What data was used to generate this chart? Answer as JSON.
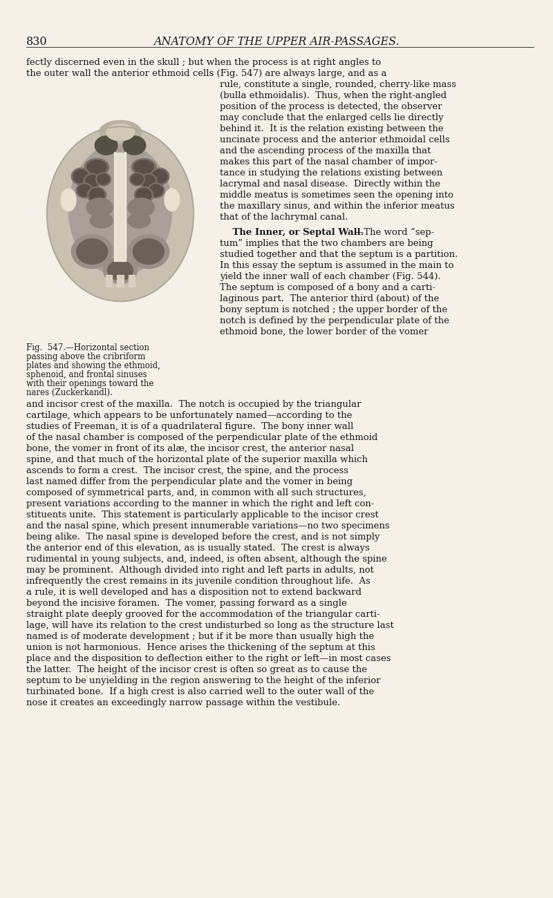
{
  "background_color": "#f5f0e8",
  "page_number": "830",
  "header": "ANATOMY OF THE UPPER AIR-PASSAGES.",
  "header_fontsize": 11.5,
  "page_number_fontsize": 11.5,
  "body_fontsize": 9.5,
  "caption_fontsize": 8.5,
  "fig_caption_line1": "Fig.  547.—Horizontal section",
  "fig_caption_line2": "passing above the cribriform",
  "fig_caption_line3": "plates and showing the ethmoid,",
  "fig_caption_line4": "sphenoid, and frontal sinuses",
  "fig_caption_line5": "with their openings toward the",
  "fig_caption_line6": "nares (Zuckerkandl).",
  "text_color": "#1a1a1a",
  "line1": "fectly discerned even in the skull ; but when the process is at right angles to",
  "line2": "the outer wall the anterior ethmoid cells (Fig. 547) are always large, and as a",
  "right_col_lines": [
    "rule, constitute a single, rounded, cherry-like mass",
    "(bulla ethmoidalis).  Thus, when the right-angled",
    "position of the process is detected, the observer",
    "may conclude that the enlarged cells lie directly",
    "behind it.  It is the relation existing between the",
    "uncinate process and the anterior ethmoidal cells",
    "and the ascending process of the maxilla that",
    "makes this part of the nasal chamber of impor-",
    "tance in studying the relations existing between",
    "lacrymal and nasal disease.  Directly within the",
    "middle meatus is sometimes seen the opening into",
    "the maxillary sinus, and within the inferior meatus",
    "that of the lachrymal canal."
  ],
  "septal_indent": "    The Inner, or Septal Wall.",
  "septal_rest_line1": "—The word “sep-",
  "septal_lines": [
    "tum” implies that the two chambers are being",
    "studied together and that the septum is a partition.",
    "In this essay the septum is assumed in the main to",
    "yield the inner wall of each chamber (Fig. 544).",
    "The septum is composed of a bony and a carti-",
    "laginous part.  The anterior third (about) of the",
    "bony septum is notched ; the upper border of the",
    "notch is defined by the perpendicular plate of the",
    "ethmoid bone, the lower border of the vomer"
  ],
  "full_width_lines": [
    "and incisor crest of the maxilla.  The notch is occupied by the triangular",
    "cartilage, which appears to be unfortunately named—according to the",
    "studies of Freeman, it is of a quadrilateral figure.  The bony inner wall",
    "of the nasal chamber is composed of the perpendicular plate of the ethmoid",
    "bone, the vomer in front of its alæ, the incisor crest, the anterior nasal",
    "spine, and that much of the horizontal plate of the superior maxilla which",
    "ascends to form a crest.  The incisor crest, the spine, and the process",
    "last named differ from the perpendicular plate and the vomer in being",
    "composed of symmetrical parts, and, in common with all such structures,",
    "present variations according to the manner in which the right and left con-",
    "stituents unite.  This statement is particularly applicable to the incisor crest",
    "and the nasal spine, which present innumerable variations—no two specimens",
    "being alike.  The nasal spine is developed before the crest, and is not simply",
    "the anterior end of this elevation, as is usually stated.  The crest is always",
    "rudimental in young subjects, and, indeed, is often absent, although the spine",
    "may be prominent.  Although divided into right and left parts in adults, not",
    "infrequently the crest remains in its juvenile condition throughout life.  As",
    "a rule, it is well developed and has a disposition not to extend backward",
    "beyond the incisive foramen.  The vomer, passing forward as a single",
    "straight plate deeply grooved for the accommodation of the triangular carti-",
    "lage, will have its relation to the crest undisturbed so long as the structure last",
    "named is of moderate development ; but if it be more than usually high the",
    "union is not harmonious.  Hence arises the thickening of the septum at this",
    "place and the disposition to deflection either to the right or left—in most cases",
    "the latter.  The height of the incisor crest is often so great as to cause the",
    "septum to be unyielding in the region answering to the height of the inferior",
    "turbinated bone.  If a high crest is also carried well to the outer wall of the",
    "nose it creates an exceedingly narrow passage within the vestibule."
  ]
}
